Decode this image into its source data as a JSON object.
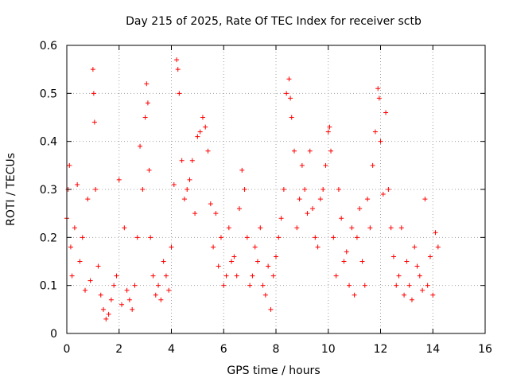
{
  "chart_data": {
    "type": "scatter",
    "title": "Day 215 of 2025, Rate Of TEC Index for receiver sctb",
    "xlabel": "GPS time / hours",
    "ylabel": "ROTI / TECUs",
    "xlim": [
      0,
      16
    ],
    "ylim": [
      0,
      0.6
    ],
    "xticks": [
      0,
      2,
      4,
      6,
      8,
      10,
      12,
      14,
      16
    ],
    "xtick_labels": [
      "0",
      "2",
      "4",
      "6",
      "8",
      "10",
      "12",
      "14",
      "16"
    ],
    "yticks": [
      0,
      0.1,
      0.2,
      0.3,
      0.4,
      0.5,
      0.6
    ],
    "ytick_labels": [
      "0",
      "0.1",
      "0.2",
      "0.3",
      "0.4",
      "0.5",
      "0.6"
    ],
    "grid": true,
    "marker": "+",
    "series": [
      {
        "name": "ROTI",
        "color": "#ff0000",
        "x": [
          0.0,
          0.05,
          0.1,
          0.15,
          0.2,
          0.3,
          0.4,
          0.5,
          0.6,
          0.7,
          0.8,
          0.9,
          1.0,
          1.03,
          1.06,
          1.1,
          1.2,
          1.3,
          1.4,
          1.5,
          1.6,
          1.7,
          1.8,
          1.9,
          2.0,
          2.1,
          2.2,
          2.3,
          2.4,
          2.5,
          2.6,
          2.7,
          2.8,
          2.9,
          3.0,
          3.05,
          3.1,
          3.15,
          3.2,
          3.3,
          3.4,
          3.5,
          3.6,
          3.7,
          3.8,
          3.9,
          4.0,
          4.1,
          4.2,
          4.25,
          4.3,
          4.4,
          4.5,
          4.6,
          4.7,
          4.8,
          4.9,
          5.0,
          5.1,
          5.2,
          5.3,
          5.4,
          5.5,
          5.6,
          5.7,
          5.8,
          5.9,
          6.0,
          6.1,
          6.2,
          6.3,
          6.4,
          6.5,
          6.6,
          6.7,
          6.8,
          6.9,
          7.0,
          7.1,
          7.2,
          7.3,
          7.4,
          7.5,
          7.6,
          7.7,
          7.8,
          7.9,
          8.0,
          8.1,
          8.2,
          8.3,
          8.4,
          8.5,
          8.55,
          8.6,
          8.7,
          8.8,
          8.9,
          9.0,
          9.1,
          9.2,
          9.3,
          9.4,
          9.5,
          9.6,
          9.7,
          9.8,
          9.9,
          10.0,
          10.05,
          10.1,
          10.2,
          10.3,
          10.4,
          10.5,
          10.6,
          10.7,
          10.8,
          10.9,
          11.0,
          11.1,
          11.2,
          11.3,
          11.4,
          11.5,
          11.6,
          11.7,
          11.8,
          11.9,
          11.95,
          12.0,
          12.1,
          12.2,
          12.3,
          12.4,
          12.5,
          12.6,
          12.7,
          12.8,
          12.9,
          13.0,
          13.1,
          13.2,
          13.3,
          13.4,
          13.5,
          13.6,
          13.7,
          13.8,
          13.9,
          14.0,
          14.1,
          14.2
        ],
        "y": [
          0.24,
          0.3,
          0.35,
          0.18,
          0.12,
          0.22,
          0.31,
          0.15,
          0.2,
          0.09,
          0.28,
          0.11,
          0.55,
          0.5,
          0.44,
          0.3,
          0.14,
          0.08,
          0.05,
          0.03,
          0.04,
          0.07,
          0.1,
          0.12,
          0.32,
          0.06,
          0.22,
          0.09,
          0.07,
          0.05,
          0.1,
          0.2,
          0.39,
          0.3,
          0.45,
          0.52,
          0.48,
          0.34,
          0.2,
          0.12,
          0.08,
          0.1,
          0.07,
          0.15,
          0.12,
          0.09,
          0.18,
          0.31,
          0.57,
          0.55,
          0.5,
          0.36,
          0.28,
          0.3,
          0.32,
          0.36,
          0.25,
          0.41,
          0.42,
          0.45,
          0.43,
          0.38,
          0.27,
          0.18,
          0.25,
          0.14,
          0.2,
          0.1,
          0.12,
          0.22,
          0.15,
          0.16,
          0.12,
          0.26,
          0.34,
          0.3,
          0.2,
          0.1,
          0.12,
          0.18,
          0.15,
          0.22,
          0.1,
          0.08,
          0.14,
          0.05,
          0.12,
          0.16,
          0.2,
          0.24,
          0.3,
          0.5,
          0.53,
          0.49,
          0.45,
          0.38,
          0.22,
          0.28,
          0.35,
          0.3,
          0.25,
          0.38,
          0.26,
          0.2,
          0.18,
          0.28,
          0.3,
          0.35,
          0.42,
          0.43,
          0.38,
          0.2,
          0.12,
          0.3,
          0.24,
          0.15,
          0.17,
          0.1,
          0.22,
          0.08,
          0.2,
          0.26,
          0.15,
          0.1,
          0.28,
          0.22,
          0.35,
          0.42,
          0.51,
          0.49,
          0.4,
          0.29,
          0.46,
          0.3,
          0.22,
          0.16,
          0.1,
          0.12,
          0.22,
          0.08,
          0.15,
          0.1,
          0.07,
          0.18,
          0.14,
          0.12,
          0.09,
          0.28,
          0.1,
          0.16,
          0.08,
          0.21,
          0.18
        ]
      }
    ]
  }
}
